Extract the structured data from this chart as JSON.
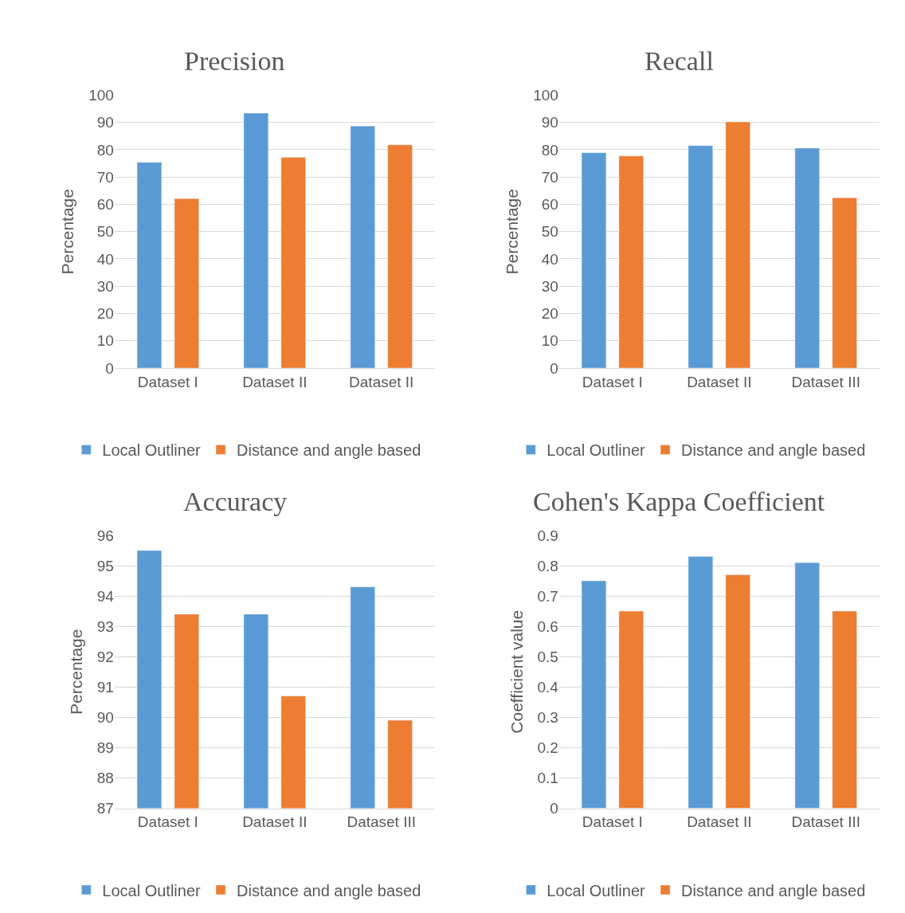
{
  "chart_data": [
    {
      "type": "bar",
      "title": "Precision",
      "ylabel": "Percentage",
      "categories": [
        "Dataset I",
        "Dataset II",
        "Dataset II"
      ],
      "series": [
        {
          "name": "Local Outliner",
          "color": "#5b9bd5",
          "values": [
            75.4,
            93.4,
            88.7
          ]
        },
        {
          "name": "Distance and angle based",
          "color": "#ed7d31",
          "values": [
            62.1,
            77.2,
            81.8
          ]
        }
      ],
      "ylim": [
        0,
        100
      ],
      "yticks": [
        0,
        10,
        20,
        30,
        40,
        50,
        60,
        70,
        80,
        90,
        100
      ],
      "grid": "y",
      "legend": "bottom"
    },
    {
      "type": "bar",
      "title": "Recall",
      "ylabel": "Percentage",
      "categories": [
        "Dataset I",
        "Dataset II",
        "Dataset III"
      ],
      "series": [
        {
          "name": "Local Outliner",
          "color": "#5b9bd5",
          "values": [
            78.9,
            81.5,
            80.6
          ]
        },
        {
          "name": "Distance and angle based",
          "color": "#ed7d31",
          "values": [
            77.7,
            90.2,
            62.4
          ]
        }
      ],
      "ylim": [
        0,
        100
      ],
      "yticks": [
        0,
        10,
        20,
        30,
        40,
        50,
        60,
        70,
        80,
        90,
        100
      ],
      "grid": "y",
      "legend": "bottom"
    },
    {
      "type": "bar",
      "title": "Accuracy",
      "ylabel": "Percentage",
      "categories": [
        "Dataset I",
        "Dataset II",
        "Dataset III"
      ],
      "series": [
        {
          "name": "Local Outliner",
          "color": "#5b9bd5",
          "values": [
            95.5,
            93.4,
            94.3
          ]
        },
        {
          "name": "Distance and angle based",
          "color": "#ed7d31",
          "values": [
            93.4,
            90.7,
            89.9
          ]
        }
      ],
      "ylim": [
        87,
        96
      ],
      "yticks": [
        87,
        88,
        89,
        90,
        91,
        92,
        93,
        94,
        95,
        96
      ],
      "grid": "y",
      "legend": "bottom"
    },
    {
      "type": "bar",
      "title": "Cohen's Kappa Coefficient",
      "ylabel": "Coefficient value",
      "categories": [
        "Dataset I",
        "Dataset II",
        "Dataset III"
      ],
      "series": [
        {
          "name": "Local Outliner",
          "color": "#5b9bd5",
          "values": [
            0.75,
            0.83,
            0.81
          ]
        },
        {
          "name": "Distance and angle based",
          "color": "#ed7d31",
          "values": [
            0.65,
            0.77,
            0.65
          ]
        }
      ],
      "ylim": [
        0,
        0.9
      ],
      "yticks": [
        0,
        0.1,
        0.2,
        0.3,
        0.4,
        0.5,
        0.6,
        0.7,
        0.8,
        0.9
      ],
      "grid": "y",
      "legend": "bottom"
    }
  ]
}
